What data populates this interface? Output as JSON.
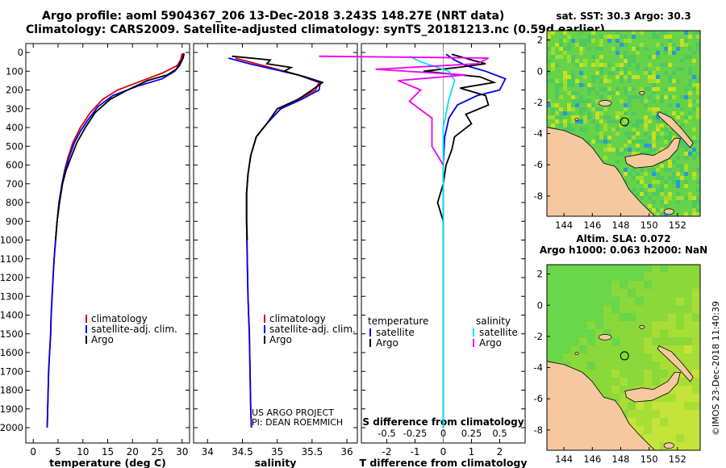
{
  "header": {
    "line1": "Argo profile: aoml 5904367_206 13-Dec-2018 3.243S 148.27E (NRT data)",
    "line2": "Climatology: CARS2009. Satellite-adjusted climatology: synTS_20181213.nc (0.59d earlier)"
  },
  "side_label": "©IMOS 23-Dec-2018 11:40:39",
  "colors": {
    "climatology": "#dd0000",
    "satellite": "#0000ee",
    "argo": "#000000",
    "sat_s": "#00e0ff",
    "argo_s": "#ee00ee",
    "land": "#f5c8a0"
  },
  "depth_axis": {
    "min": 0,
    "max": 2000,
    "labels": [
      0,
      100,
      200,
      300,
      400,
      500,
      600,
      700,
      800,
      900,
      1000,
      1100,
      1200,
      1300,
      1400,
      1500,
      1600,
      1700,
      1800,
      1900,
      2000
    ]
  },
  "chart_data": [
    {
      "id": "temp",
      "type": "line",
      "xlabel": "temperature (deg C)",
      "ylabel": "depth",
      "xlim": [
        -1.5,
        31.5
      ],
      "xticks": [
        0,
        5,
        10,
        15,
        20,
        25,
        30
      ],
      "ylim": [
        0,
        2000
      ],
      "legend": {
        "placement": "bottom-right",
        "items": [
          "climatology",
          "satellite-adj. clim.",
          "Argo"
        ]
      },
      "series": [
        {
          "name": "climatology",
          "color": "#dd0000",
          "points": [
            [
              30,
              5
            ],
            [
              29.7,
              40
            ],
            [
              29,
              70
            ],
            [
              26,
              110
            ],
            [
              21,
              160
            ],
            [
              17,
              200
            ],
            [
              14,
              250
            ],
            [
              11.5,
              320
            ],
            [
              9.5,
              400
            ],
            [
              8,
              480
            ],
            [
              7,
              560
            ],
            [
              6.3,
              630
            ],
            [
              5.8,
              700
            ],
            [
              5.2,
              800
            ],
            [
              4.8,
              900
            ],
            [
              4.5,
              1000
            ],
            [
              4.2,
              1100
            ],
            [
              4,
              1200
            ],
            [
              3.8,
              1300
            ],
            [
              3.6,
              1400
            ],
            [
              3.5,
              1500
            ],
            [
              3.3,
              1600
            ],
            [
              3.1,
              1700
            ],
            [
              3,
              1800
            ],
            [
              2.9,
              1900
            ],
            [
              2.8,
              2000
            ]
          ]
        },
        {
          "name": "satellite-adj. clim.",
          "color": "#0000ee",
          "points": [
            [
              30.3,
              5
            ],
            [
              30,
              40
            ],
            [
              29.5,
              70
            ],
            [
              28.5,
              100
            ],
            [
              26,
              140
            ],
            [
              21,
              180
            ],
            [
              16,
              230
            ],
            [
              13,
              290
            ],
            [
              11,
              360
            ],
            [
              9.5,
              420
            ],
            [
              8.3,
              480
            ],
            [
              7.2,
              560
            ],
            [
              6.4,
              630
            ],
            [
              5.8,
              700
            ],
            [
              5.2,
              800
            ],
            [
              4.8,
              900
            ],
            [
              4.5,
              1000
            ],
            [
              4.2,
              1100
            ],
            [
              4,
              1200
            ],
            [
              3.8,
              1300
            ],
            [
              3.6,
              1400
            ],
            [
              3.5,
              1500
            ],
            [
              3.3,
              1600
            ],
            [
              3.1,
              1700
            ],
            [
              3,
              1800
            ],
            [
              2.9,
              1900
            ],
            [
              2.8,
              2000
            ]
          ]
        },
        {
          "name": "Argo",
          "color": "#000000",
          "points": [
            [
              30.4,
              5
            ],
            [
              30.2,
              30
            ],
            [
              29.5,
              60
            ],
            [
              28.8,
              90
            ],
            [
              27,
              120
            ],
            [
              23,
              150
            ],
            [
              19,
              200
            ],
            [
              15.5,
              250
            ],
            [
              12.5,
              320
            ],
            [
              10.5,
              400
            ],
            [
              8.8,
              480
            ],
            [
              7.6,
              560
            ],
            [
              6.6,
              630
            ],
            [
              5.9,
              700
            ],
            [
              5.3,
              800
            ],
            [
              4.8,
              900
            ],
            [
              4.5,
              1000
            ]
          ]
        }
      ]
    },
    {
      "id": "sal",
      "type": "line",
      "xlabel": "salinity",
      "ylabel": "depth",
      "xlim": [
        33.8,
        36.15
      ],
      "xticks": [
        34,
        34.5,
        35,
        35.5,
        36
      ],
      "ylim": [
        0,
        2000
      ],
      "legend": {
        "placement": "bottom-right",
        "items": [
          "climatology",
          "satellite-adj. clim.",
          "Argo"
        ]
      },
      "annotation": [
        "US ARGO PROJECT",
        "PI: DEAN ROEMMICH"
      ],
      "series": [
        {
          "name": "climatology",
          "color": "#dd0000",
          "points": [
            [
              34.4,
              30
            ],
            [
              34.7,
              60
            ],
            [
              35,
              90
            ],
            [
              35.3,
              120
            ],
            [
              35.6,
              160
            ],
            [
              35.55,
              200
            ],
            [
              35.3,
              250
            ],
            [
              35.05,
              300
            ],
            [
              34.85,
              380
            ],
            [
              34.7,
              450
            ],
            [
              34.62,
              550
            ],
            [
              34.58,
              650
            ],
            [
              34.56,
              750
            ],
            [
              34.56,
              900
            ],
            [
              34.57,
              1100
            ],
            [
              34.58,
              1300
            ],
            [
              34.6,
              1500
            ],
            [
              34.61,
              1700
            ],
            [
              34.62,
              1900
            ],
            [
              34.63,
              2000
            ]
          ]
        },
        {
          "name": "satellite-adj. clim.",
          "color": "#0000ee",
          "points": [
            [
              34.3,
              30
            ],
            [
              34.6,
              60
            ],
            [
              34.95,
              90
            ],
            [
              35.3,
              120
            ],
            [
              35.62,
              160
            ],
            [
              35.6,
              200
            ],
            [
              35.35,
              250
            ],
            [
              35.05,
              300
            ],
            [
              34.85,
              380
            ],
            [
              34.7,
              450
            ],
            [
              34.62,
              550
            ],
            [
              34.58,
              650
            ],
            [
              34.56,
              750
            ],
            [
              34.56,
              900
            ],
            [
              34.57,
              1100
            ],
            [
              34.58,
              1300
            ],
            [
              34.6,
              1500
            ],
            [
              34.61,
              1700
            ],
            [
              34.62,
              1900
            ],
            [
              34.63,
              2000
            ]
          ]
        },
        {
          "name": "Argo",
          "color": "#000000",
          "points": [
            [
              34.35,
              20
            ],
            [
              34.9,
              40
            ],
            [
              34.85,
              60
            ],
            [
              35.2,
              80
            ],
            [
              35.1,
              100
            ],
            [
              35.4,
              130
            ],
            [
              35.65,
              160
            ],
            [
              35.5,
              200
            ],
            [
              35.3,
              250
            ],
            [
              35.0,
              300
            ],
            [
              34.85,
              380
            ],
            [
              34.7,
              450
            ],
            [
              34.62,
              550
            ],
            [
              34.58,
              650
            ],
            [
              34.56,
              750
            ],
            [
              34.56,
              900
            ],
            [
              34.57,
              1000
            ]
          ]
        }
      ]
    },
    {
      "id": "diff",
      "type": "line",
      "xlabel": "T difference from climatology",
      "top_axis_label": "S difference from climatology",
      "xlim": [
        -2.9,
        2.9
      ],
      "xticks": [
        -2,
        -1,
        0,
        1,
        2
      ],
      "top_ticks": [
        -0.5,
        -0.25,
        0,
        0.25,
        0.5
      ],
      "top_tick_labels": [
        "-0.5",
        "-0.25",
        "0",
        "0.25",
        "0.5"
      ],
      "ylim": [
        0,
        2000
      ],
      "legend": {
        "temperature_title": "temperature",
        "salinity_title": "salinity",
        "items_t": [
          "satellite",
          "Argo"
        ],
        "items_s": [
          "satellite",
          "Argo"
        ]
      },
      "series": [
        {
          "name": "T satellite",
          "color": "#0000ee",
          "points": [
            [
              0.1,
              10
            ],
            [
              0.4,
              40
            ],
            [
              0.8,
              70
            ],
            [
              1.5,
              100
            ],
            [
              2.2,
              140
            ],
            [
              2,
              200
            ],
            [
              1.2,
              230
            ],
            [
              0.5,
              280
            ],
            [
              0.2,
              350
            ],
            [
              0.05,
              450
            ],
            [
              0,
              600
            ],
            [
              0,
              2000
            ]
          ]
        },
        {
          "name": "T Argo",
          "color": "#000000",
          "points": [
            [
              0.3,
              10
            ],
            [
              1,
              40
            ],
            [
              1.5,
              60
            ],
            [
              0.5,
              80
            ],
            [
              -0.7,
              100
            ],
            [
              1.3,
              130
            ],
            [
              1.8,
              160
            ],
            [
              0.6,
              190
            ],
            [
              1.5,
              230
            ],
            [
              1.6,
              280
            ],
            [
              0.8,
              330
            ],
            [
              1,
              380
            ],
            [
              0.4,
              450
            ],
            [
              0.3,
              520
            ],
            [
              0.1,
              600
            ],
            [
              0,
              700
            ],
            [
              -0.2,
              800
            ],
            [
              0,
              900
            ],
            [
              0,
              1000
            ]
          ]
        },
        {
          "name": "S satellite",
          "color": "#00e0ff",
          "points": [
            [
              -0.3,
              20
            ],
            [
              -0.2,
              50
            ],
            [
              0.05,
              100
            ],
            [
              0.1,
              150
            ],
            [
              0.05,
              250
            ],
            [
              0,
              400
            ],
            [
              0,
              2000
            ]
          ]
        },
        {
          "name": "S Argo",
          "color": "#ee00ee",
          "points": [
            [
              -1.1,
              20
            ],
            [
              0.4,
              30
            ],
            [
              0.3,
              60
            ],
            [
              -0.6,
              90
            ],
            [
              0.2,
              120
            ],
            [
              -0.4,
              150
            ],
            [
              -0.2,
              200
            ],
            [
              -0.3,
              260
            ],
            [
              -0.1,
              350
            ],
            [
              -0.1,
              500
            ],
            [
              0,
              600
            ]
          ]
        }
      ]
    }
  ],
  "maps": [
    {
      "id": "sst",
      "title": "sat. SST: 30.3 Argo: 30.3",
      "xticks": [
        144,
        146,
        148,
        150,
        152
      ],
      "yticks": [
        2,
        0,
        -2,
        -4,
        -6,
        -8
      ],
      "xlim": [
        142.8,
        153.6
      ],
      "ylim": [
        -9.3,
        2.6
      ],
      "argo_position": [
        148.27,
        -3.243
      ]
    },
    {
      "id": "sla",
      "title": "Altim. SLA: 0.072",
      "subtitle": "Argo h1000: 0.063 h2000: NaN",
      "xticks": [
        144,
        146,
        148,
        150,
        152
      ],
      "yticks": [
        2,
        0,
        -2,
        -4,
        -6,
        -8
      ],
      "xlim": [
        142.8,
        153.6
      ],
      "ylim": [
        -9.3,
        2.6
      ],
      "argo_position": [
        148.27,
        -3.243
      ]
    }
  ]
}
